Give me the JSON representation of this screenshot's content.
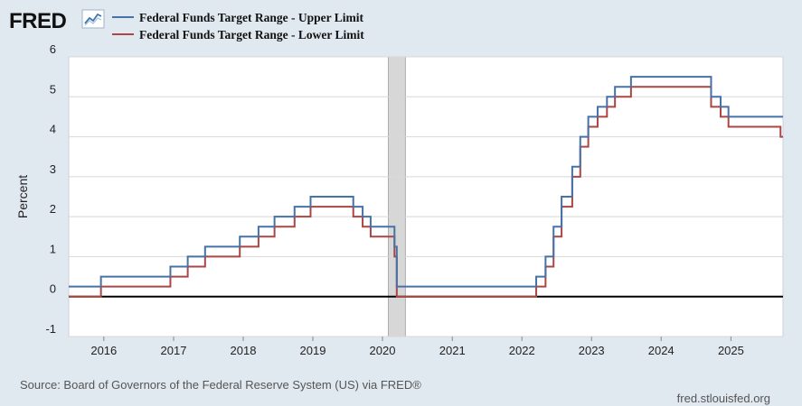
{
  "logo": {
    "text": "FRED",
    "icon": "line-chart-icon"
  },
  "source": "Source: Board of Governors of the Federal Reserve System (US) via FRED®",
  "site": "fred.stlouisfed.org",
  "colors": {
    "background": "#e1e9f0",
    "plot_background": "#ffffff",
    "upper": "#4572a7",
    "lower": "#aa4643",
    "recession": "#d7d7d7",
    "gridline": "#d8d8d8",
    "zero_line": "#000000"
  },
  "chart_data": {
    "type": "line",
    "ylabel": "Percent",
    "ylim": [
      -1,
      6
    ],
    "y_ticks": [
      -1,
      0,
      1,
      2,
      3,
      4,
      5,
      6
    ],
    "x_range": [
      "2015-07-01",
      "2025-10-01"
    ],
    "x_ticks": [
      "2016",
      "2017",
      "2018",
      "2019",
      "2020",
      "2021",
      "2022",
      "2023",
      "2024",
      "2025"
    ],
    "grid": true,
    "legend_position": "top-left",
    "recession_shading": {
      "start": "2020-02-01",
      "end": "2020-04-30"
    },
    "series": [
      {
        "name": "Federal Funds Target Range - Upper Limit",
        "color": "#4572a7",
        "step": true,
        "points": [
          [
            "2015-07-01",
            0.25
          ],
          [
            "2015-12-17",
            0.5
          ],
          [
            "2016-12-15",
            0.75
          ],
          [
            "2017-03-16",
            1.0
          ],
          [
            "2017-06-15",
            1.25
          ],
          [
            "2017-12-14",
            1.5
          ],
          [
            "2018-03-22",
            1.75
          ],
          [
            "2018-06-14",
            2.0
          ],
          [
            "2018-09-27",
            2.25
          ],
          [
            "2018-12-20",
            2.5
          ],
          [
            "2019-08-01",
            2.25
          ],
          [
            "2019-09-19",
            2.0
          ],
          [
            "2019-10-31",
            1.75
          ],
          [
            "2020-03-04",
            1.25
          ],
          [
            "2020-03-16",
            0.25
          ],
          [
            "2022-03-17",
            0.5
          ],
          [
            "2022-05-05",
            1.0
          ],
          [
            "2022-06-16",
            1.75
          ],
          [
            "2022-07-28",
            2.5
          ],
          [
            "2022-09-22",
            3.25
          ],
          [
            "2022-11-03",
            4.0
          ],
          [
            "2022-12-15",
            4.5
          ],
          [
            "2023-02-02",
            4.75
          ],
          [
            "2023-03-23",
            5.0
          ],
          [
            "2023-05-04",
            5.25
          ],
          [
            "2023-07-27",
            5.5
          ],
          [
            "2024-09-19",
            5.0
          ],
          [
            "2024-11-08",
            4.75
          ],
          [
            "2024-12-19",
            4.5
          ],
          [
            "2025-10-01",
            4.5
          ]
        ]
      },
      {
        "name": "Federal Funds Target Range - Lower Limit",
        "color": "#aa4643",
        "step": true,
        "points": [
          [
            "2015-07-01",
            0.0
          ],
          [
            "2015-12-17",
            0.25
          ],
          [
            "2016-12-15",
            0.5
          ],
          [
            "2017-03-16",
            0.75
          ],
          [
            "2017-06-15",
            1.0
          ],
          [
            "2017-12-14",
            1.25
          ],
          [
            "2018-03-22",
            1.5
          ],
          [
            "2018-06-14",
            1.75
          ],
          [
            "2018-09-27",
            2.0
          ],
          [
            "2018-12-20",
            2.25
          ],
          [
            "2019-08-01",
            2.0
          ],
          [
            "2019-09-19",
            1.75
          ],
          [
            "2019-10-31",
            1.5
          ],
          [
            "2020-03-04",
            1.0
          ],
          [
            "2020-03-16",
            0.0
          ],
          [
            "2022-03-17",
            0.25
          ],
          [
            "2022-05-05",
            0.75
          ],
          [
            "2022-06-16",
            1.5
          ],
          [
            "2022-07-28",
            2.25
          ],
          [
            "2022-09-22",
            3.0
          ],
          [
            "2022-11-03",
            3.75
          ],
          [
            "2022-12-15",
            4.25
          ],
          [
            "2023-02-02",
            4.5
          ],
          [
            "2023-03-23",
            4.75
          ],
          [
            "2023-05-04",
            5.0
          ],
          [
            "2023-07-27",
            5.25
          ],
          [
            "2024-09-19",
            4.75
          ],
          [
            "2024-11-08",
            4.5
          ],
          [
            "2024-12-19",
            4.25
          ],
          [
            "2025-09-18",
            4.0
          ],
          [
            "2025-10-01",
            4.0
          ]
        ]
      }
    ]
  }
}
